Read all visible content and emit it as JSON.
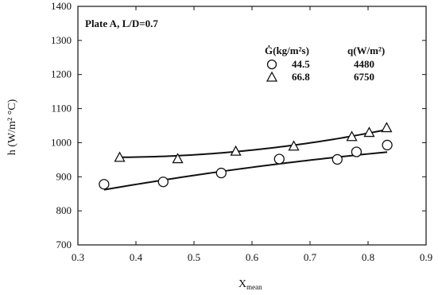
{
  "chart_data": {
    "type": "scatter",
    "annotation": "Plate A, L/D=0.7",
    "xlabel": "X",
    "xlabel_sub": "mean",
    "ylabel": "h (W/m² °C)",
    "xlim": [
      0.3,
      0.9
    ],
    "ylim": [
      700,
      1400
    ],
    "x_ticks": [
      "0.3",
      "0.4",
      "0.5",
      "0.6",
      "0.7",
      "0.8",
      "0.9"
    ],
    "x_tick_values": [
      0.3,
      0.4,
      0.5,
      0.6,
      0.7,
      0.8,
      0.9
    ],
    "y_ticks": [
      "700",
      "800",
      "900",
      "1000",
      "1100",
      "1200",
      "1300",
      "1400"
    ],
    "y_tick_values": [
      700,
      800,
      900,
      1000,
      1100,
      1200,
      1300,
      1400
    ],
    "grid": false,
    "legend_position": "top-right",
    "legend_headers": [
      "Ġ(kg/m²s)",
      "q(W/m²)"
    ],
    "series": [
      {
        "marker": "circle",
        "G_label": "44.5",
        "q_label": "4480",
        "points": [
          {
            "x": 0.345,
            "y": 878
          },
          {
            "x": 0.447,
            "y": 885
          },
          {
            "x": 0.547,
            "y": 911
          },
          {
            "x": 0.647,
            "y": 952
          },
          {
            "x": 0.747,
            "y": 951
          },
          {
            "x": 0.78,
            "y": 973
          },
          {
            "x": 0.833,
            "y": 993
          }
        ],
        "fit": {
          "x_start": 0.345,
          "x_end": 0.833,
          "a": 744.1,
          "b": 388.4,
          "c": -137.3
        }
      },
      {
        "marker": "triangle",
        "G_label": "66.8",
        "q_label": "6750",
        "points": [
          {
            "x": 0.372,
            "y": 957
          },
          {
            "x": 0.472,
            "y": 953
          },
          {
            "x": 0.572,
            "y": 975
          },
          {
            "x": 0.672,
            "y": 990
          },
          {
            "x": 0.772,
            "y": 1018
          },
          {
            "x": 0.802,
            "y": 1030
          },
          {
            "x": 0.832,
            "y": 1044
          }
        ],
        "fit": {
          "x_start": 0.372,
          "x_end": 0.832,
          "a": 1003.2,
          "b": -258.4,
          "c": 361.3
        }
      }
    ]
  }
}
